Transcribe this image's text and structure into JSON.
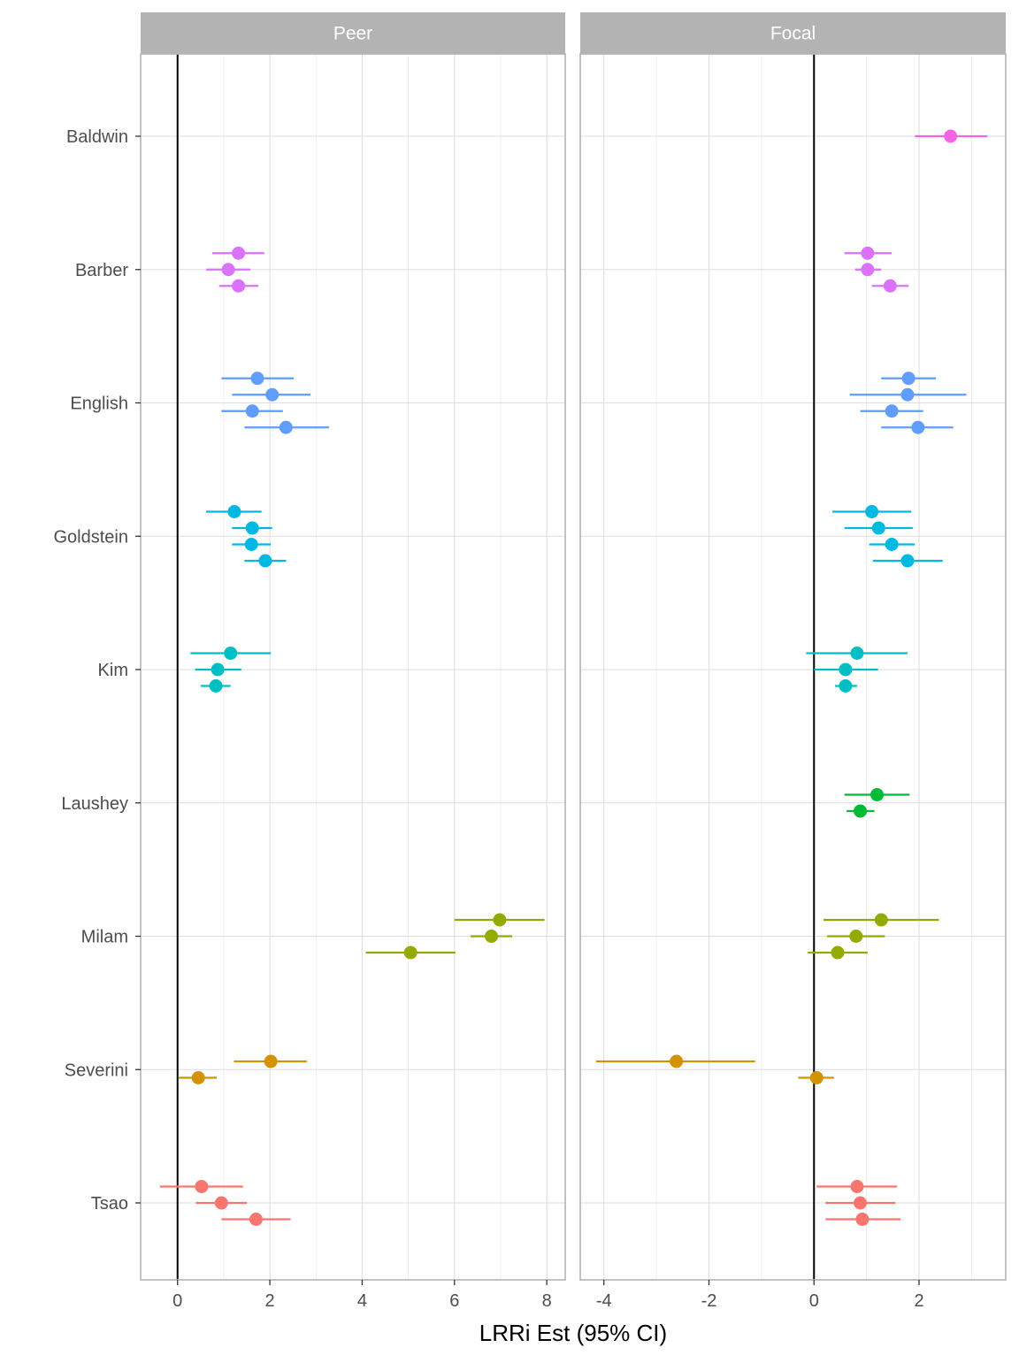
{
  "chart_data": {
    "type": "forest",
    "xlabel": "LRRi Est (95% CI)",
    "ylabel": "",
    "legend": "none",
    "grid": true,
    "studies": [
      "Baldwin",
      "Barber",
      "English",
      "Goldstein",
      "Kim",
      "Laushey",
      "Milam",
      "Severini",
      "Tsao"
    ],
    "colors": {
      "Baldwin": "#F564E3",
      "Barber": "#DB72FB",
      "English": "#619CFF",
      "Goldstein": "#00B9E3",
      "Kim": "#00BFC4",
      "Laushey": "#00BA38",
      "Milam": "#93AA00",
      "Severini": "#D39200",
      "Tsao": "#F8766D"
    },
    "panels": [
      {
        "name": "Peer",
        "xlim": [
          -0.8,
          8.4
        ],
        "xticks": [
          0,
          2,
          4,
          6,
          8
        ],
        "xtick_labels": [
          "0",
          "2",
          "4",
          "6",
          "8"
        ],
        "reference_line": 0,
        "estimates": [
          {
            "study": "Barber",
            "offset": -1,
            "est": 1.32,
            "lo": 0.75,
            "hi": 1.88
          },
          {
            "study": "Barber",
            "offset": 0,
            "est": 1.1,
            "lo": 0.62,
            "hi": 1.58
          },
          {
            "study": "Barber",
            "offset": 1,
            "est": 1.32,
            "lo": 0.9,
            "hi": 1.75
          },
          {
            "study": "English",
            "offset": -1.5,
            "est": 1.73,
            "lo": 0.95,
            "hi": 2.52
          },
          {
            "study": "English",
            "offset": -0.5,
            "est": 2.05,
            "lo": 1.18,
            "hi": 2.88
          },
          {
            "study": "English",
            "offset": 0.5,
            "est": 1.62,
            "lo": 0.95,
            "hi": 2.28
          },
          {
            "study": "English",
            "offset": 1.5,
            "est": 2.35,
            "lo": 1.45,
            "hi": 3.28
          },
          {
            "study": "Goldstein",
            "offset": -1.5,
            "est": 1.23,
            "lo": 0.62,
            "hi": 1.82
          },
          {
            "study": "Goldstein",
            "offset": -0.5,
            "est": 1.62,
            "lo": 1.18,
            "hi": 2.05
          },
          {
            "study": "Goldstein",
            "offset": 0.5,
            "est": 1.6,
            "lo": 1.18,
            "hi": 2.02
          },
          {
            "study": "Goldstein",
            "offset": 1.5,
            "est": 1.9,
            "lo": 1.45,
            "hi": 2.35
          },
          {
            "study": "Kim",
            "offset": -1,
            "est": 1.15,
            "lo": 0.28,
            "hi": 2.02
          },
          {
            "study": "Kim",
            "offset": 0,
            "est": 0.87,
            "lo": 0.38,
            "hi": 1.38
          },
          {
            "study": "Kim",
            "offset": 1,
            "est": 0.83,
            "lo": 0.5,
            "hi": 1.15
          },
          {
            "study": "Milam",
            "offset": -1,
            "est": 6.98,
            "lo": 6.0,
            "hi": 7.95
          },
          {
            "study": "Milam",
            "offset": 0,
            "est": 6.8,
            "lo": 6.35,
            "hi": 7.25
          },
          {
            "study": "Milam",
            "offset": 1,
            "est": 5.05,
            "lo": 4.08,
            "hi": 6.02
          },
          {
            "study": "Severini",
            "offset": -0.5,
            "est": 2.02,
            "lo": 1.22,
            "hi": 2.8
          },
          {
            "study": "Severini",
            "offset": 0.5,
            "est": 0.45,
            "lo": 0.02,
            "hi": 0.85
          },
          {
            "study": "Tsao",
            "offset": -1,
            "est": 0.52,
            "lo": -0.38,
            "hi": 1.42
          },
          {
            "study": "Tsao",
            "offset": 0,
            "est": 0.95,
            "lo": 0.4,
            "hi": 1.5
          },
          {
            "study": "Tsao",
            "offset": 1,
            "est": 1.7,
            "lo": 0.95,
            "hi": 2.45
          }
        ]
      },
      {
        "name": "Focal",
        "xlim": [
          -4.45,
          3.65
        ],
        "xticks": [
          -4,
          -2,
          0,
          2
        ],
        "xtick_labels": [
          "-4",
          "-2",
          "0",
          "2"
        ],
        "reference_line": 0,
        "estimates": [
          {
            "study": "Baldwin",
            "offset": 0,
            "est": 2.6,
            "lo": 1.92,
            "hi": 3.3
          },
          {
            "study": "Barber",
            "offset": -1,
            "est": 1.02,
            "lo": 0.58,
            "hi": 1.48
          },
          {
            "study": "Barber",
            "offset": 0,
            "est": 1.02,
            "lo": 0.78,
            "hi": 1.28
          },
          {
            "study": "Barber",
            "offset": 1,
            "est": 1.45,
            "lo": 1.1,
            "hi": 1.8
          },
          {
            "study": "English",
            "offset": -1.5,
            "est": 1.8,
            "lo": 1.28,
            "hi": 2.32
          },
          {
            "study": "English",
            "offset": -0.5,
            "est": 1.78,
            "lo": 0.68,
            "hi": 2.9
          },
          {
            "study": "English",
            "offset": 0.5,
            "est": 1.48,
            "lo": 0.88,
            "hi": 2.08
          },
          {
            "study": "English",
            "offset": 1.5,
            "est": 1.98,
            "lo": 1.28,
            "hi": 2.65
          },
          {
            "study": "Goldstein",
            "offset": -1.5,
            "est": 1.1,
            "lo": 0.35,
            "hi": 1.85
          },
          {
            "study": "Goldstein",
            "offset": -0.5,
            "est": 1.23,
            "lo": 0.58,
            "hi": 1.88
          },
          {
            "study": "Goldstein",
            "offset": 0.5,
            "est": 1.48,
            "lo": 1.05,
            "hi": 1.92
          },
          {
            "study": "Goldstein",
            "offset": 1.5,
            "est": 1.78,
            "lo": 1.12,
            "hi": 2.45
          },
          {
            "study": "Kim",
            "offset": -1,
            "est": 0.82,
            "lo": -0.15,
            "hi": 1.78
          },
          {
            "study": "Kim",
            "offset": 0,
            "est": 0.6,
            "lo": 0.0,
            "hi": 1.22
          },
          {
            "study": "Kim",
            "offset": 1,
            "est": 0.6,
            "lo": 0.4,
            "hi": 0.82
          },
          {
            "study": "Laushey",
            "offset": -0.5,
            "est": 1.2,
            "lo": 0.58,
            "hi": 1.82
          },
          {
            "study": "Laushey",
            "offset": 0.5,
            "est": 0.88,
            "lo": 0.62,
            "hi": 1.15
          },
          {
            "study": "Milam",
            "offset": -1,
            "est": 1.28,
            "lo": 0.18,
            "hi": 2.38
          },
          {
            "study": "Milam",
            "offset": 0,
            "est": 0.8,
            "lo": 0.25,
            "hi": 1.35
          },
          {
            "study": "Milam",
            "offset": 1,
            "est": 0.45,
            "lo": -0.12,
            "hi": 1.02
          },
          {
            "study": "Severini",
            "offset": -0.5,
            "est": -2.62,
            "lo": -4.15,
            "hi": -1.12
          },
          {
            "study": "Severini",
            "offset": 0.5,
            "est": 0.05,
            "lo": -0.3,
            "hi": 0.38
          },
          {
            "study": "Tsao",
            "offset": -1,
            "est": 0.82,
            "lo": 0.05,
            "hi": 1.58
          },
          {
            "study": "Tsao",
            "offset": 0,
            "est": 0.88,
            "lo": 0.22,
            "hi": 1.55
          },
          {
            "study": "Tsao",
            "offset": 1,
            "est": 0.92,
            "lo": 0.22,
            "hi": 1.65
          }
        ]
      }
    ]
  }
}
